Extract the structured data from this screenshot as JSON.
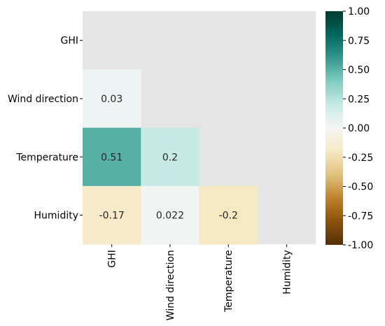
{
  "chart_data": {
    "type": "heatmap",
    "variables": [
      "GHI",
      "Wind direction",
      "Temperature",
      "Humidity"
    ],
    "mask": "upper-triangle-including-diagonal",
    "cells": [
      {
        "row": "Wind direction",
        "col": "GHI",
        "value": 0.03,
        "label": "0.03"
      },
      {
        "row": "Temperature",
        "col": "GHI",
        "value": 0.51,
        "label": "0.51"
      },
      {
        "row": "Temperature",
        "col": "Wind direction",
        "value": 0.2,
        "label": "0.2"
      },
      {
        "row": "Humidity",
        "col": "GHI",
        "value": -0.17,
        "label": "-0.17"
      },
      {
        "row": "Humidity",
        "col": "Wind direction",
        "value": 0.022,
        "label": "0.022"
      },
      {
        "row": "Humidity",
        "col": "Temperature",
        "value": -0.2,
        "label": "-0.2"
      }
    ],
    "colorbar": {
      "colormap": "BrBG",
      "vmin": -1.0,
      "vmax": 1.0,
      "ticks": [
        "1.00",
        "0.75",
        "0.50",
        "0.25",
        "0.00",
        "-0.25",
        "-0.50",
        "-0.75",
        "-1.00"
      ]
    },
    "colors": {
      "masked_background": "#e5e5e5"
    }
  }
}
